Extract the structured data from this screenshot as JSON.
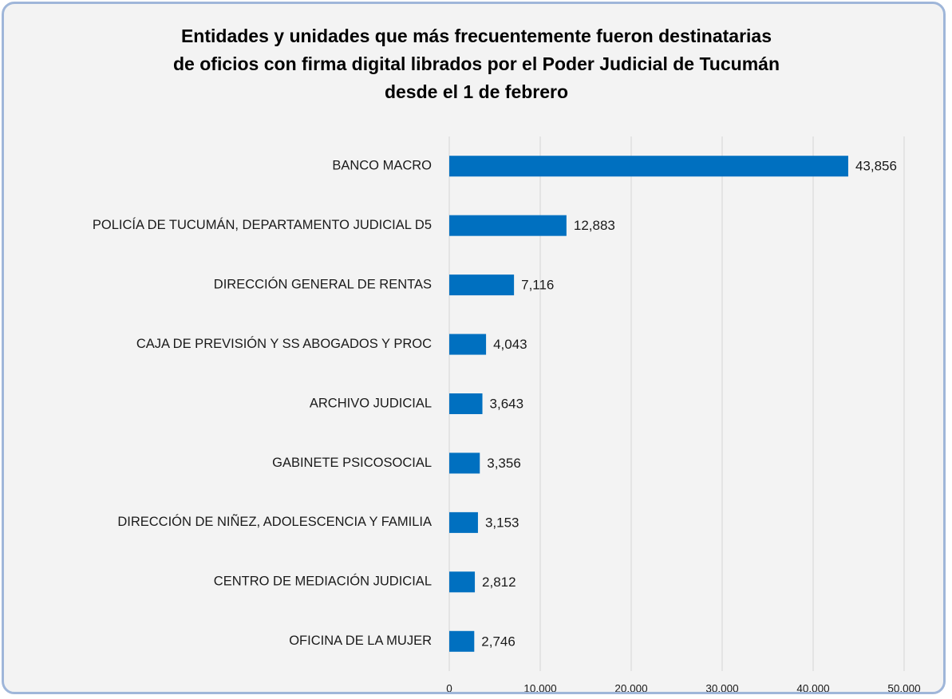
{
  "chart_data": {
    "type": "bar",
    "orientation": "horizontal",
    "title": [
      "Entidades y unidades que más frecuentemente fueron destinatarias",
      "de oficios con firma digital librados por el Poder Judicial de Tucumán",
      "desde el 1 de febrero"
    ],
    "categories": [
      "BANCO MACRO",
      "POLICÍA DE TUCUMÁN, DEPARTAMENTO JUDICIAL D5",
      "DIRECCIÓN GENERAL DE RENTAS",
      "CAJA DE PREVISIÓN Y SS ABOGADOS Y PROC",
      "ARCHIVO JUDICIAL",
      "GABINETE PSICOSOCIAL",
      "DIRECCIÓN DE NIÑEZ, ADOLESCENCIA Y FAMILIA",
      "CENTRO DE MEDIACIÓN JUDICIAL",
      "OFICINA DE LA MUJER"
    ],
    "values": [
      43856,
      12883,
      7116,
      4043,
      3643,
      3356,
      3153,
      2812,
      2746
    ],
    "value_labels": [
      "43,856",
      "12,883",
      "7,116",
      "4,043",
      "3,643",
      "3,356",
      "3,153",
      "2,812",
      "2,746"
    ],
    "color": "#0070c0",
    "xlim": [
      0,
      50000
    ],
    "xticks": [
      0,
      {
        "value": 10000,
        "label": "10,000"
      },
      {
        "value": 20000,
        "label": "20,000"
      },
      {
        "value": 30000,
        "label": "30,000"
      },
      {
        "value": 40000,
        "label": "40,000"
      },
      {
        "value": 50000,
        "label": "50,000"
      }
    ],
    "grid": true
  }
}
